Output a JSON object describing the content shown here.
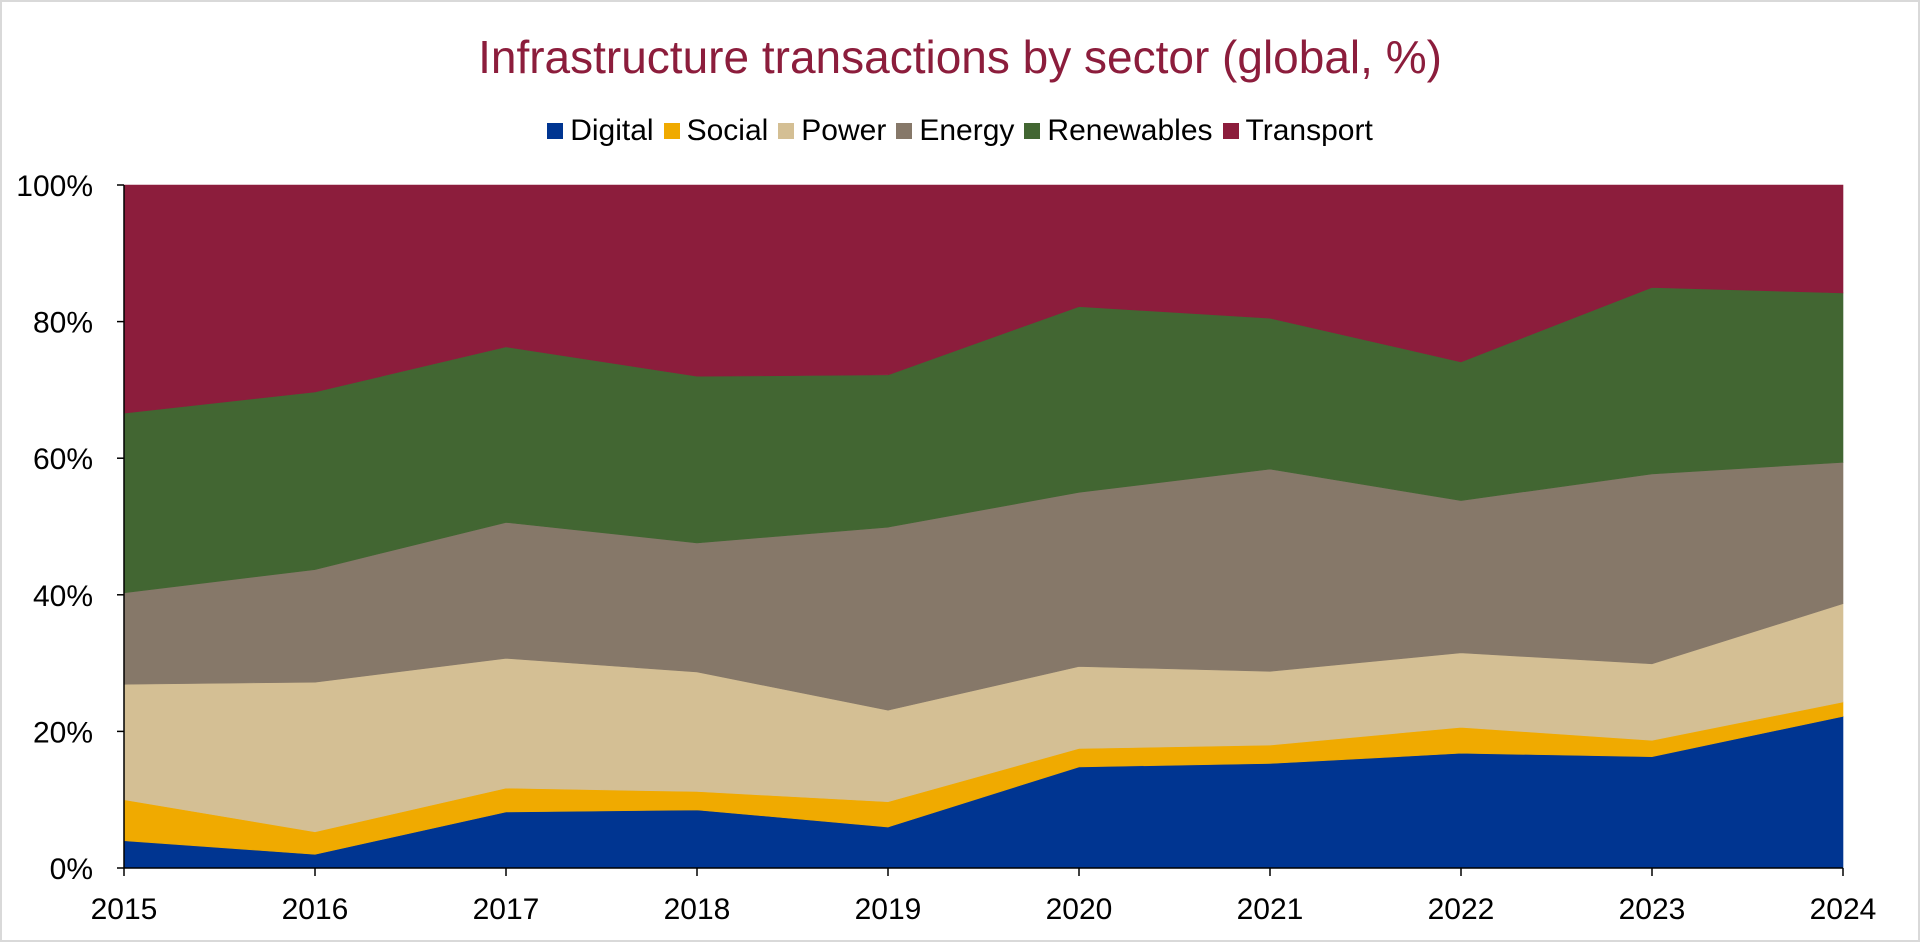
{
  "chart_data": {
    "type": "area",
    "stacked": true,
    "normalized": true,
    "title": "Infrastructure transactions by sector (global, %)",
    "xlabel": "",
    "ylabel": "",
    "categories": [
      "2015",
      "2016",
      "2017",
      "2018",
      "2019",
      "2020",
      "2021",
      "2022",
      "2023",
      "2024"
    ],
    "ylim": [
      0,
      100
    ],
    "yticks": [
      "0%",
      "20%",
      "40%",
      "60%",
      "80%",
      "100%"
    ],
    "legend_position": "top",
    "grid": false,
    "series": [
      {
        "name": "Digital",
        "color": "#003591",
        "values": [
          4.0,
          2.0,
          8.2,
          8.5,
          6.0,
          14.8,
          15.3,
          16.8,
          16.3,
          22.2
        ]
      },
      {
        "name": "Social",
        "color": "#f0aa00",
        "values": [
          6.0,
          3.3,
          3.5,
          2.7,
          3.7,
          2.7,
          2.7,
          3.8,
          2.4,
          2.1
        ]
      },
      {
        "name": "Power",
        "color": "#d4bf94",
        "values": [
          16.9,
          21.9,
          19.0,
          17.5,
          13.4,
          12.0,
          10.8,
          10.9,
          11.2,
          14.4
        ]
      },
      {
        "name": "Energy",
        "color": "#867869",
        "values": [
          13.4,
          16.5,
          19.9,
          18.9,
          26.8,
          25.5,
          29.6,
          22.3,
          27.8,
          20.7
        ]
      },
      {
        "name": "Renewables",
        "color": "#426632",
        "values": [
          26.3,
          26.0,
          25.7,
          24.4,
          22.3,
          27.2,
          22.1,
          20.3,
          27.3,
          24.8
        ]
      },
      {
        "name": "Transport",
        "color": "#8c1d3c",
        "values": [
          33.4,
          30.3,
          23.7,
          28.0,
          27.8,
          17.8,
          19.5,
          25.9,
          15.0,
          15.8
        ]
      }
    ]
  }
}
